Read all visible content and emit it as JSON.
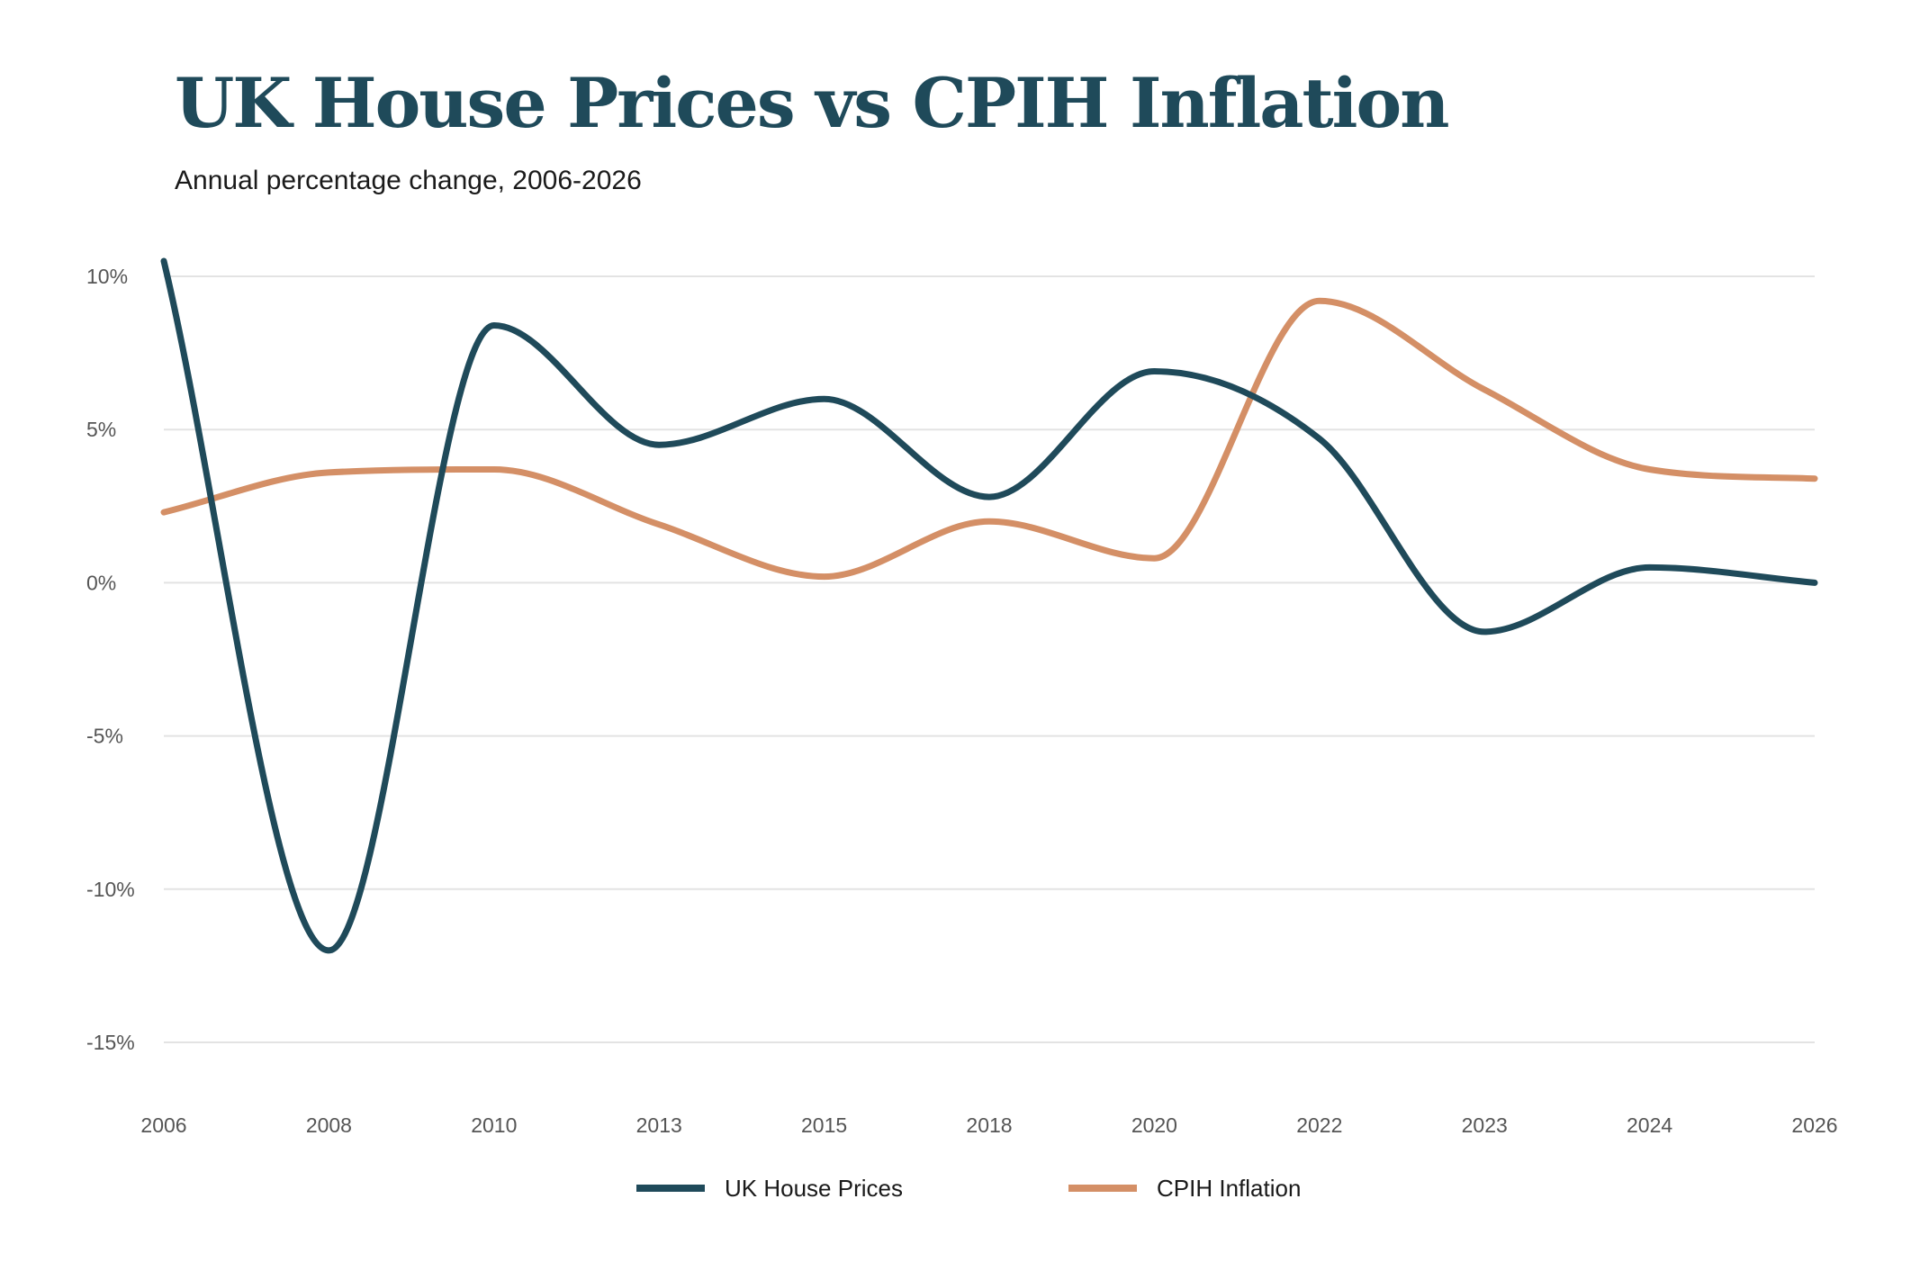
{
  "chart_data": {
    "type": "line",
    "title": "UK House Prices vs CPIH Inflation",
    "subtitle": "Annual percentage change, 2006-2026",
    "xlabel": "",
    "ylabel": "",
    "categories": [
      "2006",
      "2008",
      "2010",
      "2013",
      "2015",
      "2018",
      "2020",
      "2022",
      "2023",
      "2024",
      "2026"
    ],
    "ylim": [
      -15,
      10
    ],
    "yticks": [
      10,
      5,
      0,
      -5,
      -10,
      -15
    ],
    "ytick_labels": [
      "10%",
      "5%",
      "0%",
      "-5%",
      "-10%",
      "-15%"
    ],
    "grid": true,
    "legend_position": "bottom",
    "series": [
      {
        "name": "UK House Prices",
        "color": "#1f4a5a",
        "values": [
          10.5,
          -12.0,
          8.4,
          4.5,
          6.0,
          2.8,
          6.9,
          4.7,
          -1.6,
          0.5,
          0.0
        ]
      },
      {
        "name": "CPIH Inflation",
        "color": "#d48f66",
        "values": [
          2.3,
          3.6,
          3.7,
          1.9,
          0.2,
          2.0,
          0.8,
          9.2,
          6.3,
          3.7,
          3.4
        ]
      }
    ]
  }
}
